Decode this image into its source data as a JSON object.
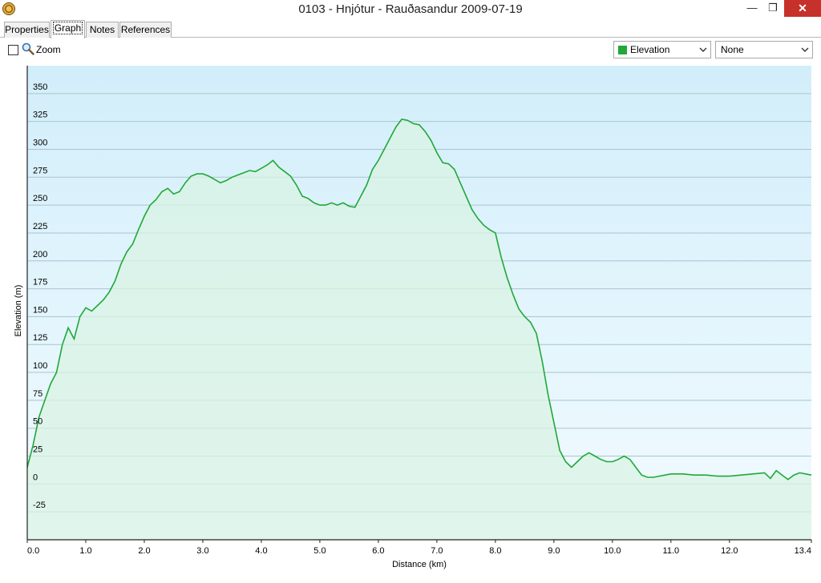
{
  "window": {
    "title": "0103 - Hnjótur - Rauðasandur 2009-07-19",
    "app_icon": "gps-app-icon",
    "minimize": "—",
    "restore": "❐",
    "close": "✕"
  },
  "tabs": [
    {
      "label": "Properties",
      "active": false
    },
    {
      "label": "Graph",
      "active": true
    },
    {
      "label": "Notes",
      "active": false
    },
    {
      "label": "References",
      "active": false
    }
  ],
  "toolbar": {
    "zoom_label": "Zoom",
    "zoom_checked": false,
    "primary_series": {
      "label": "Elevation",
      "color": "#20a838"
    },
    "secondary_series": {
      "label": "None"
    }
  },
  "chart_data": {
    "type": "area",
    "xlabel": "Distance  (km)",
    "ylabel": "Elevation (m)",
    "xlim": [
      0,
      13.4
    ],
    "ylim": [
      -50,
      375
    ],
    "x_ticks": [
      "0.0",
      "1.0",
      "2.0",
      "3.0",
      "4.0",
      "5.0",
      "6.0",
      "7.0",
      "8.0",
      "9.0",
      "10.0",
      "11.0",
      "12.0",
      "13.4"
    ],
    "x_tick_values": [
      0,
      1,
      2,
      3,
      4,
      5,
      6,
      7,
      8,
      9,
      10,
      11,
      12,
      13.4
    ],
    "y_ticks": [
      "350",
      "325",
      "300",
      "275",
      "250",
      "225",
      "200",
      "175",
      "150",
      "125",
      "100",
      "75",
      "50",
      "25",
      "0",
      "-25"
    ],
    "y_tick_values": [
      350,
      325,
      300,
      275,
      250,
      225,
      200,
      175,
      150,
      125,
      100,
      75,
      50,
      25,
      0,
      -25
    ],
    "grid": true,
    "line_color": "#20a838",
    "series": [
      {
        "x": [
          0,
          0.1,
          0.2,
          0.3,
          0.4,
          0.5,
          0.6,
          0.7,
          0.8,
          0.9,
          1.0,
          1.1,
          1.2,
          1.3,
          1.4,
          1.5,
          1.6,
          1.7,
          1.8,
          1.9,
          2.0,
          2.1,
          2.2,
          2.3,
          2.4,
          2.5,
          2.6,
          2.7,
          2.8,
          2.9,
          3.0,
          3.1,
          3.2,
          3.3,
          3.4,
          3.5,
          3.6,
          3.7,
          3.8,
          3.9,
          4.0,
          4.1,
          4.2,
          4.3,
          4.4,
          4.5,
          4.6,
          4.7,
          4.8,
          4.9,
          5.0,
          5.1,
          5.2,
          5.3,
          5.4,
          5.5,
          5.6,
          5.7,
          5.8,
          5.9,
          6.0,
          6.1,
          6.2,
          6.3,
          6.4,
          6.5,
          6.6,
          6.7,
          6.8,
          6.9,
          7.0,
          7.1,
          7.2,
          7.3,
          7.4,
          7.5,
          7.6,
          7.7,
          7.8,
          7.9,
          8.0,
          8.1,
          8.2,
          8.3,
          8.4,
          8.5,
          8.6,
          8.7,
          8.8,
          8.9,
          9.0,
          9.1,
          9.2,
          9.3,
          9.4,
          9.5,
          9.6,
          9.7,
          9.8,
          9.9,
          10.0,
          10.1,
          10.2,
          10.3,
          10.4,
          10.5,
          10.6,
          10.7,
          10.8,
          10.9,
          11.0,
          11.2,
          11.4,
          11.6,
          11.8,
          12.0,
          12.2,
          12.4,
          12.6,
          12.7,
          12.8,
          12.9,
          13.0,
          13.1,
          13.2,
          13.3,
          13.4
        ],
        "y": [
          15,
          35,
          60,
          75,
          90,
          100,
          125,
          140,
          130,
          150,
          158,
          155,
          160,
          165,
          172,
          182,
          197,
          208,
          215,
          228,
          240,
          250,
          255,
          262,
          265,
          260,
          262,
          270,
          276,
          278,
          278,
          276,
          273,
          270,
          272,
          275,
          277,
          279,
          281,
          280,
          283,
          286,
          290,
          284,
          280,
          276,
          268,
          258,
          256,
          252,
          250,
          250,
          252,
          250,
          252,
          249,
          248,
          258,
          268,
          282,
          290,
          300,
          310,
          320,
          327,
          326,
          323,
          322,
          316,
          308,
          297,
          288,
          287,
          282,
          270,
          258,
          246,
          238,
          232,
          228,
          225,
          203,
          185,
          170,
          157,
          150,
          145,
          135,
          110,
          80,
          55,
          30,
          20,
          15,
          20,
          25,
          28,
          25,
          22,
          20,
          20,
          22,
          25,
          22,
          15,
          8,
          6,
          6,
          7,
          8,
          9,
          9,
          8,
          8,
          7,
          7,
          8,
          9,
          10,
          5,
          12,
          8,
          4,
          8,
          10,
          9,
          8
        ]
      }
    ]
  }
}
